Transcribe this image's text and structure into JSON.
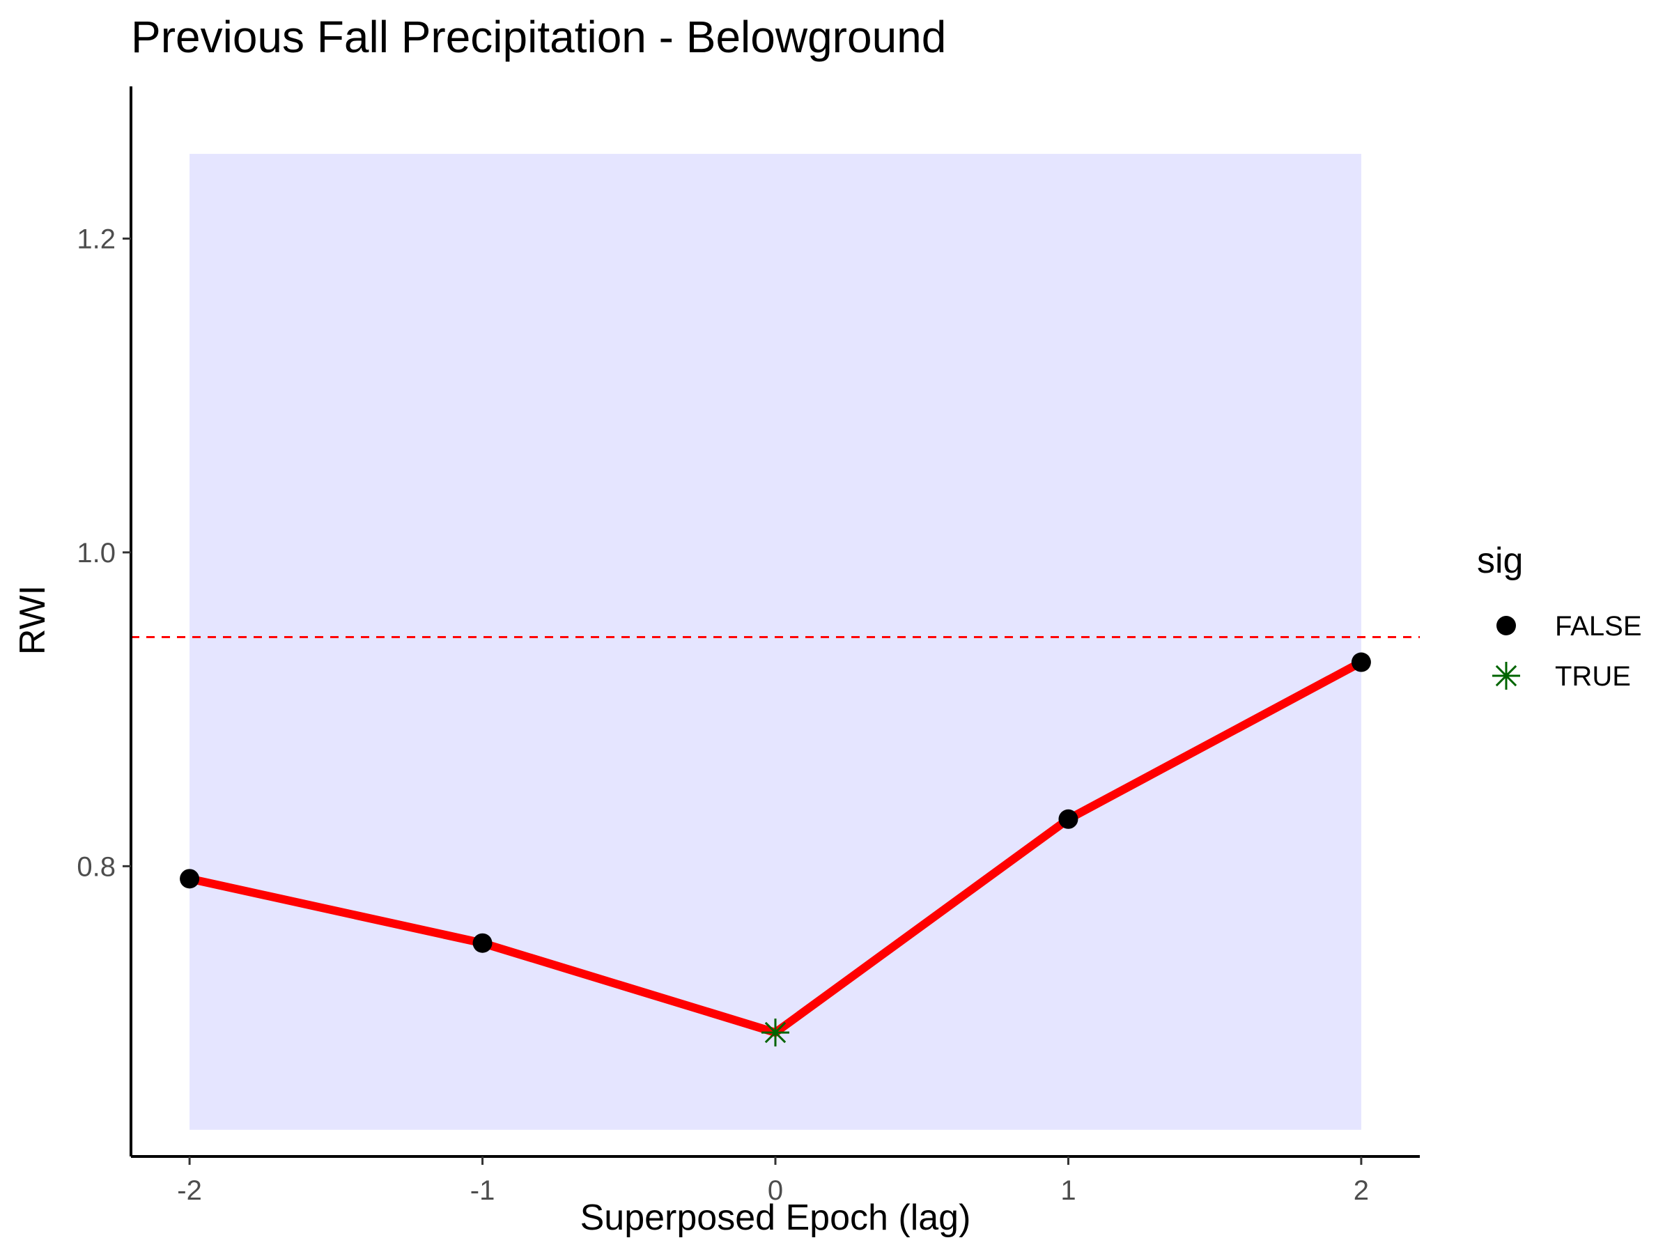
{
  "chart_data": {
    "type": "line",
    "title": "Previous Fall Precipitation - Belowground",
    "xlabel": "Superposed Epoch (lag)",
    "ylabel": "RWI",
    "x": [
      -2,
      -1,
      0,
      1,
      2
    ],
    "x_tick_labels": [
      "-2",
      "-1",
      "0",
      "1",
      "2"
    ],
    "xlim": [
      -2.2,
      2.2
    ],
    "y_ticks": [
      0.8,
      1.0,
      1.2
    ],
    "y_tick_labels": [
      "0.8",
      "1.0",
      "1.2"
    ],
    "ylim": [
      0.615,
      1.297
    ],
    "series": [
      {
        "values": [
          0.792,
          0.751,
          0.694,
          0.83,
          0.93
        ],
        "color": "#ff0000"
      }
    ],
    "point_sig": [
      false,
      false,
      true,
      false,
      false
    ],
    "confidence_band": {
      "x_range": [
        -2,
        2
      ],
      "y_range": [
        0.632,
        1.254
      ],
      "color": "#e5e5ff"
    },
    "reference_line": {
      "y": 0.946,
      "style": "dashed",
      "color": "#ff0000"
    },
    "legend": {
      "title": "sig",
      "placement": "right",
      "entries": [
        {
          "label": "FALSE",
          "marker": "circle",
          "color": "#000000"
        },
        {
          "label": "TRUE",
          "marker": "asterisk",
          "color": "#006400"
        }
      ]
    },
    "grid": false
  }
}
